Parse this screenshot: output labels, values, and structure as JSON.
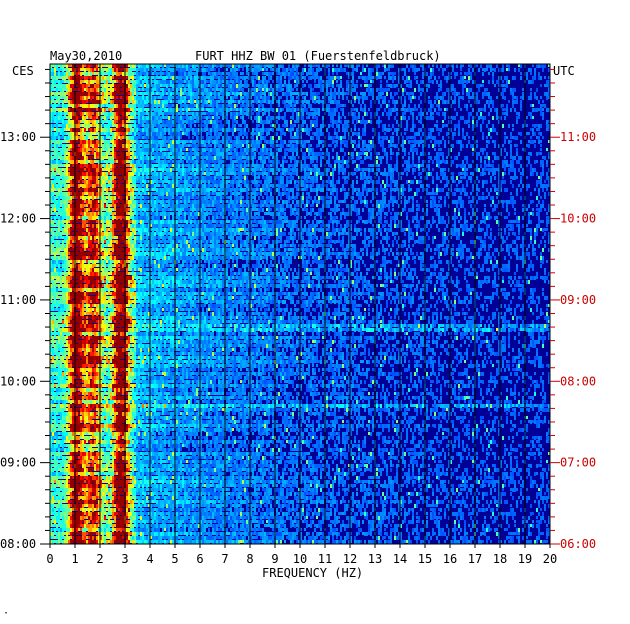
{
  "header": {
    "date": "May30,2010",
    "station": "FURT HHZ BW 01 (Fuerstenfeldbruck)",
    "left_zone": "CES",
    "right_zone": "UTC"
  },
  "footer_mark": "·",
  "colors": {
    "background": "#000096",
    "right_axis": "#cc0000",
    "grid": "#000000"
  },
  "chart_data": {
    "type": "heatmap",
    "title": "FURT HHZ BW 01 (Fuerstenfeldbruck)",
    "xlabel": "FREQUENCY (HZ)",
    "ylabel": "",
    "xlim": [
      0,
      20
    ],
    "x_ticks": [
      "0",
      "1",
      "2",
      "3",
      "4",
      "5",
      "6",
      "7",
      "8",
      "9",
      "10",
      "11",
      "12",
      "13",
      "14",
      "15",
      "16",
      "17",
      "18",
      "19",
      "20"
    ],
    "y_left_zone": "CES",
    "y_right_zone": "UTC",
    "y_left_ticks": [
      "08:00",
      "09:00",
      "10:00",
      "11:00",
      "12:00",
      "13:00"
    ],
    "y_right_ticks": [
      "06:00",
      "07:00",
      "08:00",
      "09:00",
      "10:00",
      "11:00"
    ],
    "ylim_hours_ces": [
      8.0,
      13.9
    ],
    "grid": "vertical lines at every 1 Hz",
    "bands": [
      {
        "freq_hz": 1.0,
        "intensity": 0.75
      },
      {
        "freq_hz": 2.8,
        "intensity": 0.85
      },
      {
        "freq_hz": 1.7,
        "intensity": 0.45
      }
    ]
  }
}
